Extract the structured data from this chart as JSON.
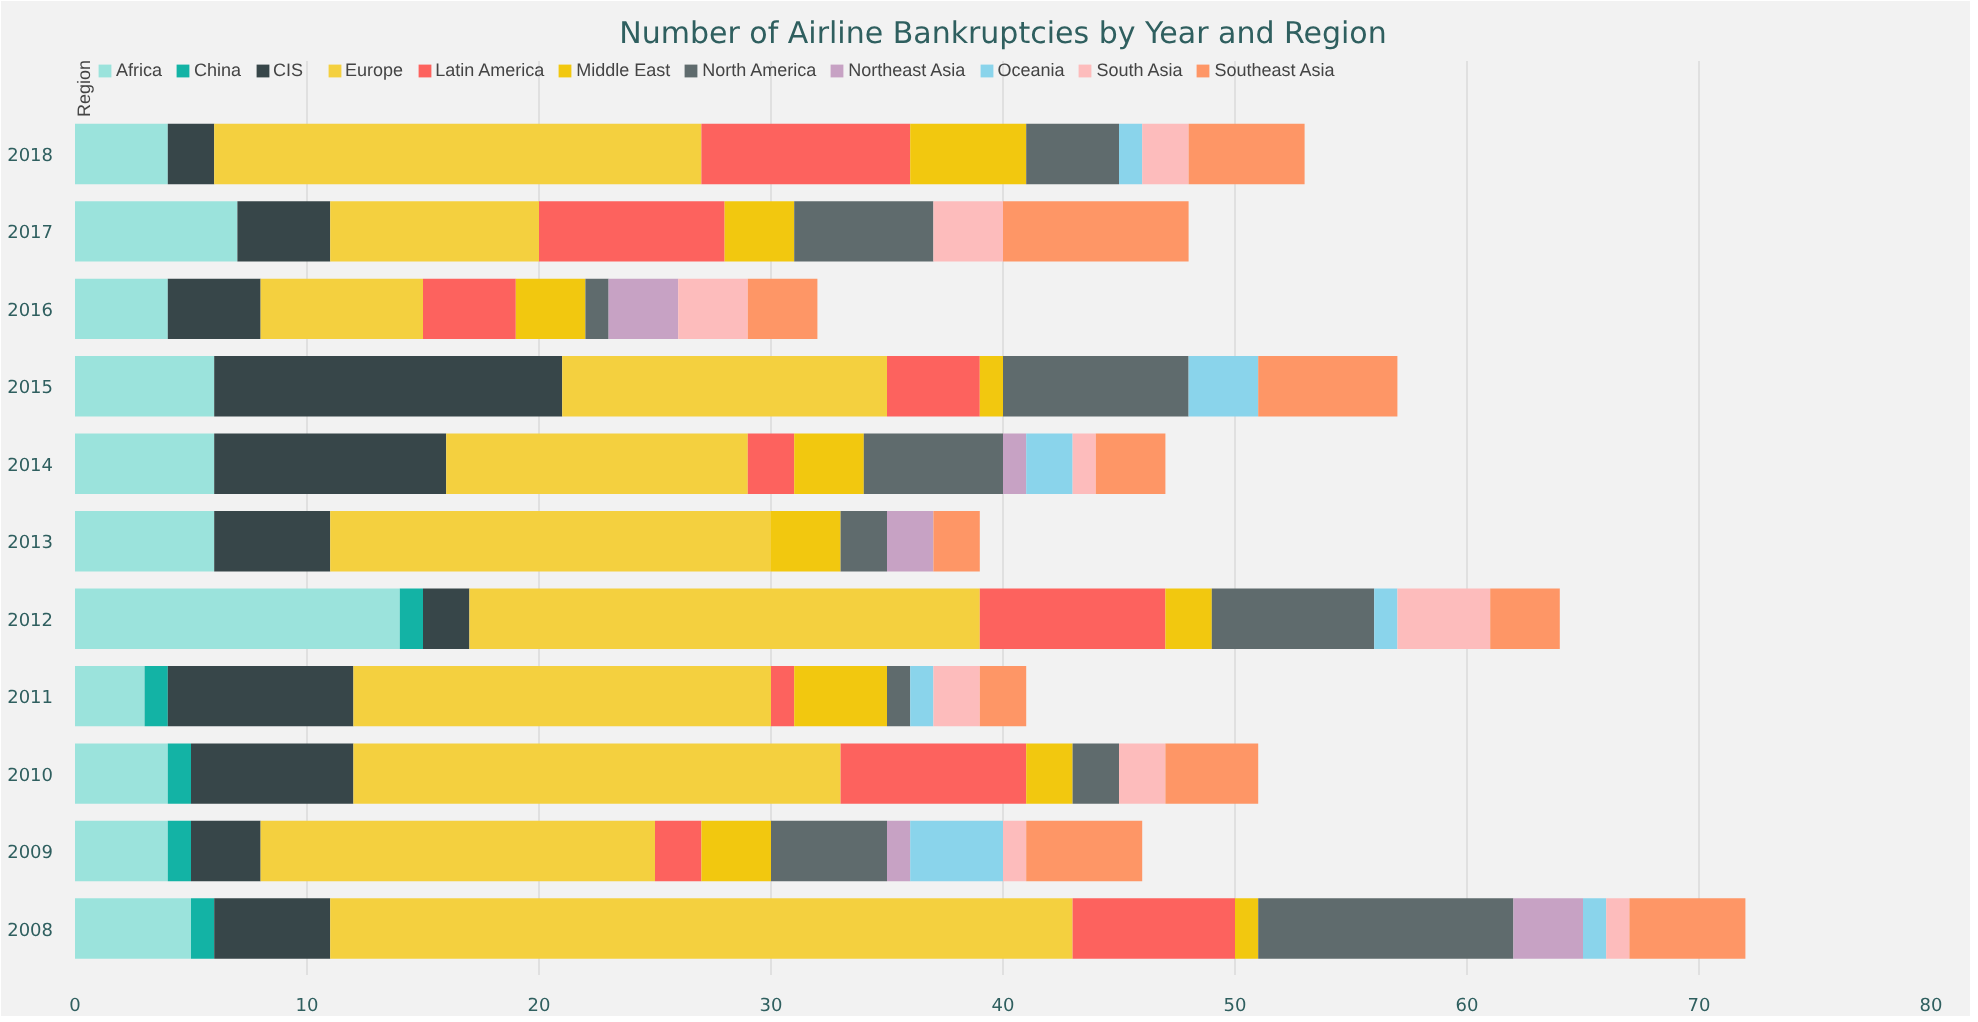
{
  "chart_data": {
    "type": "bar",
    "orientation": "horizontal",
    "stacked": true,
    "title": "Number of Airline Bankruptcies by Year and Region",
    "legend_title": "Region",
    "legend": "top left",
    "grid": "x",
    "categories": [
      "2018",
      "2017",
      "2016",
      "2015",
      "2014",
      "2013",
      "2012",
      "2011",
      "2010",
      "2009",
      "2008"
    ],
    "xlim": [
      0,
      80
    ],
    "xticks": [
      0,
      10,
      20,
      30,
      40,
      50,
      60,
      70,
      80
    ],
    "series": [
      {
        "name": "Africa",
        "color": "#9be3dc",
        "values": [
          4,
          7,
          4,
          6,
          6,
          6,
          14,
          3,
          4,
          4,
          5
        ]
      },
      {
        "name": "China",
        "color": "#13b3a5",
        "values": [
          0,
          0,
          0,
          0,
          0,
          0,
          1,
          1,
          1,
          1,
          1
        ]
      },
      {
        "name": "CIS",
        "color": "#374649",
        "values": [
          2,
          4,
          4,
          15,
          10,
          5,
          2,
          8,
          7,
          3,
          5
        ]
      },
      {
        "name": "Europe",
        "color": "#f4d03f",
        "values": [
          21,
          9,
          7,
          14,
          13,
          19,
          22,
          18,
          21,
          17,
          32
        ]
      },
      {
        "name": "Latin America",
        "color": "#fd625e",
        "values": [
          9,
          8,
          4,
          4,
          2,
          0,
          8,
          1,
          8,
          2,
          7
        ]
      },
      {
        "name": "Middle East",
        "color": "#f2c80f",
        "values": [
          5,
          3,
          3,
          1,
          3,
          3,
          2,
          4,
          2,
          3,
          1
        ]
      },
      {
        "name": "North America",
        "color": "#5f6b6d",
        "values": [
          4,
          6,
          1,
          8,
          6,
          2,
          7,
          1,
          2,
          5,
          11
        ]
      },
      {
        "name": "Northeast Asia",
        "color": "#c7a2c4",
        "values": [
          0,
          0,
          3,
          0,
          1,
          2,
          0,
          0,
          0,
          1,
          3
        ]
      },
      {
        "name": "Oceania",
        "color": "#8ad4eb",
        "values": [
          1,
          0,
          0,
          3,
          2,
          0,
          1,
          1,
          0,
          4,
          1
        ]
      },
      {
        "name": "South Asia",
        "color": "#fdbcbc",
        "values": [
          2,
          3,
          3,
          0,
          1,
          0,
          4,
          2,
          2,
          1,
          1
        ]
      },
      {
        "name": "Southeast Asia",
        "color": "#fe9666",
        "values": [
          5,
          8,
          3,
          6,
          3,
          2,
          3,
          2,
          4,
          5,
          5
        ]
      }
    ]
  }
}
